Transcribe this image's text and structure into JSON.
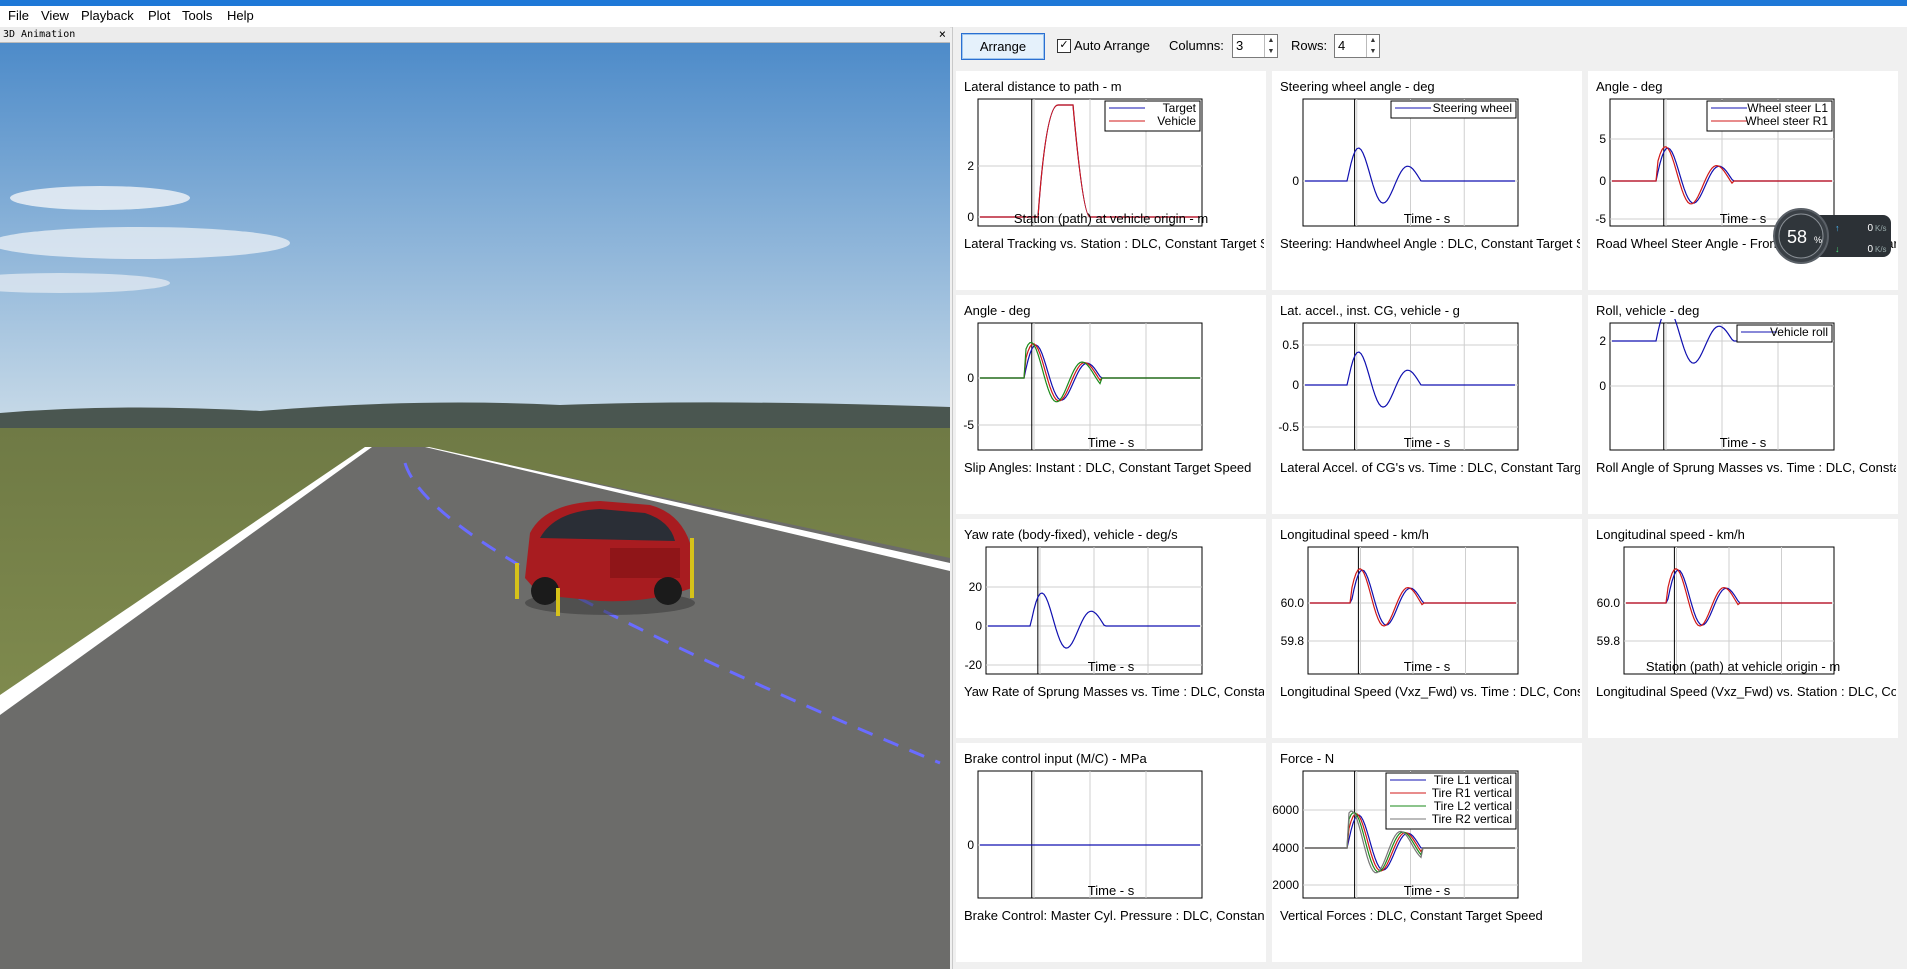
{
  "menu": [
    "File",
    "View",
    "Playback",
    "Plot",
    "Tools",
    "Help"
  ],
  "animation": {
    "title": "3D Animation",
    "close": "×"
  },
  "toolbar": {
    "arrange": "Arrange",
    "auto_arrange": "Auto Arrange",
    "columns_label": "Columns:",
    "columns_value": "3",
    "rows_label": "Rows:",
    "rows_value": "4"
  },
  "gauge": {
    "percent": "58",
    "unit": "%",
    "up": "0",
    "down": "0",
    "speed_unit": "K/s"
  },
  "plots": [
    {
      "title": "Lateral distance to path - m",
      "xlabel": "Station (path) at vehicle origin - m",
      "footer": "Lateral Tracking vs. Station : DLC, Constant Target Speed",
      "yticks": [
        "2",
        "0"
      ],
      "legend": [
        "Target",
        "Vehicle"
      ]
    },
    {
      "title": "Steering wheel angle - deg",
      "xlabel": "Time - s",
      "footer": "Steering: Handwheel Angle : DLC, Constant Target Speed",
      "yticks": [
        "0"
      ],
      "legend": [
        "Steering wheel"
      ]
    },
    {
      "title": "Angle - deg",
      "xlabel": "Time - s",
      "footer": "Road Wheel Steer Angle - Front : DLC, Constant Target Speed",
      "yticks": [
        "5",
        "0",
        "-5"
      ],
      "legend": [
        "Wheel steer L1",
        "Wheel steer R1"
      ]
    },
    {
      "title": "Angle - deg",
      "xlabel": "Time - s",
      "footer": "Slip Angles: Instant : DLC, Constant Target Speed",
      "yticks": [
        "0",
        "-5"
      ],
      "legend": []
    },
    {
      "title": "Lat. accel., inst. CG, vehicle - g",
      "xlabel": "Time - s",
      "footer": "Lateral Accel. of CG's vs. Time : DLC, Constant Target Speed",
      "yticks": [
        "0.5",
        "0",
        "-0.5"
      ],
      "legend": []
    },
    {
      "title": "Roll, vehicle - deg",
      "xlabel": "Time - s",
      "footer": "Roll Angle of Sprung Masses vs. Time : DLC, Constant Target Speed",
      "yticks": [
        "2",
        "0"
      ],
      "legend": [
        "Vehicle roll"
      ]
    },
    {
      "title": "Yaw rate (body-fixed), vehicle - deg/s",
      "xlabel": "Time - s",
      "footer": "Yaw Rate of Sprung Masses vs. Time : DLC, Constant Target Speed",
      "yticks": [
        "20",
        "0",
        "-20"
      ],
      "legend": []
    },
    {
      "title": "Longitudinal speed - km/h",
      "xlabel": "Time - s",
      "footer": "Longitudinal Speed (Vxz_Fwd) vs. Time : DLC, Constant Target Speed",
      "yticks": [
        "60.0",
        "59.8"
      ],
      "legend": []
    },
    {
      "title": "Longitudinal speed - km/h",
      "xlabel": "Station (path) at vehicle origin - m",
      "footer": "Longitudinal Speed (Vxz_Fwd) vs. Station : DLC, Constant Target Speed",
      "yticks": [
        "60.0",
        "59.8"
      ],
      "legend": []
    },
    {
      "title": "Brake control input (M/C) - MPa",
      "xlabel": "Time - s",
      "footer": "Brake Control: Master Cyl. Pressure : DLC, Constant Target Speed",
      "yticks": [
        "0"
      ],
      "legend": []
    },
    {
      "title": "Force - N",
      "xlabel": "Time - s",
      "footer": "Vertical Forces : DLC, Constant Target Speed",
      "yticks": [
        "6000",
        "4000",
        "2000"
      ],
      "legend": [
        "Tire L1 vertical",
        "Tire R1 vertical",
        "Tire L2 vertical",
        "Tire R2 vertical"
      ]
    }
  ],
  "colors": {
    "blue": "#1010b0",
    "red": "#d01818",
    "green": "#1a8a1a",
    "gray": "#777777",
    "accent": "#1e78d7"
  }
}
